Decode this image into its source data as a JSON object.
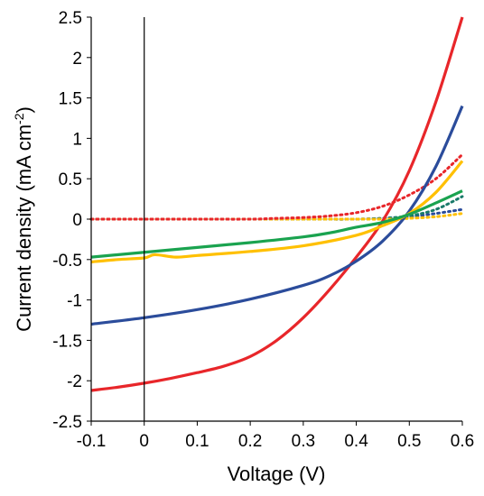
{
  "chart_data": {
    "type": "line",
    "xlabel": "Voltage (V)",
    "ylabel": "Current density (mA cm",
    "ylabel_sup": "-2",
    "ylabel_end": ")",
    "xlim": [
      -0.1,
      0.6
    ],
    "ylim": [
      -2.5,
      2.5
    ],
    "x_ticks": [
      -0.1,
      0,
      0.1,
      0.2,
      0.3,
      0.4,
      0.5,
      0.6
    ],
    "x_tick_labels": [
      "-0.1",
      "0",
      "0.1",
      "0.2",
      "0.3",
      "0.4",
      "0.5",
      "0.6"
    ],
    "y_ticks": [
      -2.5,
      -2,
      -1.5,
      -1,
      -0.5,
      0,
      0.5,
      1,
      1.5,
      2,
      2.5
    ],
    "y_tick_labels": [
      "-2.5",
      "-2",
      "-1.5",
      "-1",
      "-0.5",
      "0",
      "0.5",
      "1",
      "1.5",
      "2",
      "2.5"
    ],
    "grid": false,
    "series": [
      {
        "color": "#2b4c9b",
        "style": "dotted",
        "x": [
          -0.1,
          0,
          0.1,
          0.2,
          0.3,
          0.4,
          0.45,
          0.5,
          0.55,
          0.6
        ],
        "y": [
          0,
          0,
          0,
          0,
          0,
          0,
          0.01,
          0.03,
          0.07,
          0.12
        ]
      },
      {
        "color": "#1a7a6a",
        "style": "dotted",
        "x": [
          -0.1,
          0,
          0.1,
          0.2,
          0.3,
          0.4,
          0.45,
          0.5,
          0.55,
          0.6
        ],
        "y": [
          0,
          0,
          0,
          0,
          0,
          0,
          0.01,
          0.04,
          0.12,
          0.28
        ]
      },
      {
        "color": "#ffc000",
        "style": "dotted",
        "x": [
          -0.1,
          0,
          0.1,
          0.2,
          0.3,
          0.4,
          0.45,
          0.5,
          0.55,
          0.6
        ],
        "y": [
          0,
          0,
          0,
          0,
          0,
          0,
          0,
          0.01,
          0.03,
          0.07
        ]
      },
      {
        "color": "#e8262a",
        "style": "dotted",
        "x": [
          -0.1,
          0,
          0.1,
          0.2,
          0.25,
          0.3,
          0.35,
          0.4,
          0.45,
          0.5,
          0.55,
          0.6
        ],
        "y": [
          0,
          0,
          0,
          0,
          0.01,
          0.02,
          0.04,
          0.08,
          0.16,
          0.3,
          0.5,
          0.8
        ]
      },
      {
        "color": "#e8262a",
        "style": "solid",
        "x": [
          -0.1,
          -0.05,
          0,
          0.05,
          0.1,
          0.15,
          0.2,
          0.25,
          0.3,
          0.35,
          0.4,
          0.45,
          0.5,
          0.55,
          0.6
        ],
        "y": [
          -2.12,
          -2.08,
          -2.03,
          -1.97,
          -1.9,
          -1.82,
          -1.7,
          -1.5,
          -1.22,
          -0.87,
          -0.47,
          -0.02,
          0.6,
          1.45,
          2.5
        ]
      },
      {
        "color": "#2b4c9b",
        "style": "solid",
        "x": [
          -0.1,
          0,
          0.1,
          0.2,
          0.3,
          0.35,
          0.4,
          0.45,
          0.5,
          0.55,
          0.6
        ],
        "y": [
          -1.3,
          -1.22,
          -1.12,
          -0.99,
          -0.82,
          -0.7,
          -0.52,
          -0.27,
          0.1,
          0.65,
          1.4
        ]
      },
      {
        "color": "#ffc000",
        "style": "solid",
        "x": [
          -0.1,
          -0.05,
          0,
          0.02,
          0.06,
          0.1,
          0.2,
          0.3,
          0.4,
          0.45,
          0.5,
          0.55,
          0.6
        ],
        "y": [
          -0.53,
          -0.5,
          -0.48,
          -0.44,
          -0.47,
          -0.45,
          -0.4,
          -0.33,
          -0.2,
          -0.08,
          0.07,
          0.33,
          0.72
        ]
      },
      {
        "color": "#1aa34f",
        "style": "solid",
        "x": [
          -0.1,
          0,
          0.1,
          0.2,
          0.3,
          0.35,
          0.4,
          0.45,
          0.5,
          0.55,
          0.6
        ],
        "y": [
          -0.47,
          -0.41,
          -0.35,
          -0.29,
          -0.22,
          -0.17,
          -0.1,
          -0.04,
          0.06,
          0.2,
          0.35
        ]
      }
    ]
  }
}
